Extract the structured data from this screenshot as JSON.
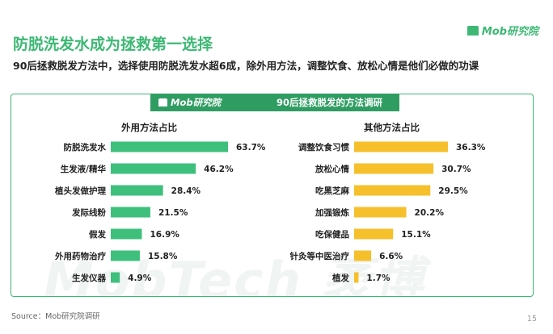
{
  "header": {
    "title": "防脱洗发水成为拯救第一选择",
    "logo": "Mob研究院",
    "subtitle": "90后拯救脱发方法中，选择使用防脱洗发水超6成，除外用方法，调整饮食、放松心情是他们必做的功课"
  },
  "banner": {
    "logo": "Mob研究院",
    "title": "90后拯救脱发的方法调研"
  },
  "watermark": "MobTech 袤博",
  "footer": {
    "source": "Source：Mob研究院调研",
    "page": "15"
  },
  "colors": {
    "brand": "#3db874",
    "left_bar": "#3ec07c",
    "right_bar": "#f6c02d"
  },
  "chart_data": [
    {
      "type": "bar",
      "orientation": "horizontal",
      "title": "外用方法占比",
      "categories": [
        "防脱洗发水",
        "生发液/精华",
        "植头发做护理",
        "发际线粉",
        "假发",
        "外用药物治疗",
        "生发仪器"
      ],
      "values": [
        63.7,
        46.2,
        28.4,
        21.5,
        16.9,
        15.8,
        4.9
      ],
      "labels": [
        "63.7%",
        "46.2%",
        "28.4%",
        "21.5%",
        "16.9%",
        "15.8%",
        "4.9%"
      ],
      "unit": "%",
      "grid": false
    },
    {
      "type": "bar",
      "orientation": "horizontal",
      "title": "其他方法占比",
      "categories": [
        "调整饮食习惯",
        "放松心情",
        "吃黑芝麻",
        "加强锻炼",
        "吃保健品",
        "针灸等中医治疗",
        "植发"
      ],
      "values": [
        36.3,
        30.7,
        29.5,
        20.2,
        15.1,
        6.6,
        1.7
      ],
      "labels": [
        "36.3%",
        "30.7%",
        "29.5%",
        "20.2%",
        "15.1%",
        "6.6%",
        "1.7%"
      ],
      "unit": "%",
      "grid": false
    }
  ]
}
